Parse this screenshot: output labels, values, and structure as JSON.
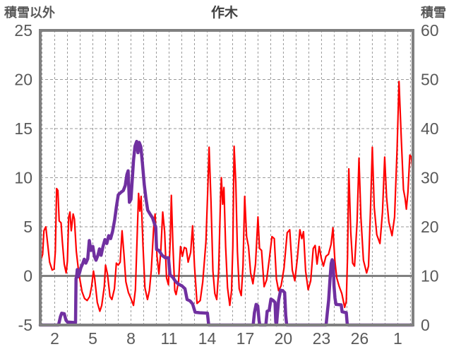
{
  "title": "作木",
  "left_axis": {
    "label": "積雪以外",
    "max": 25,
    "min": -5,
    "ticks": [
      25,
      20,
      15,
      10,
      5,
      0,
      -5
    ]
  },
  "right_axis": {
    "label": "積雪",
    "max": 60,
    "min": 0,
    "ticks": [
      60,
      50,
      40,
      30,
      20,
      10,
      0
    ]
  },
  "x_axis": {
    "tick_labels": [
      "2",
      "5",
      "8",
      "11",
      "14",
      "17",
      "20",
      "23",
      "26",
      "1"
    ],
    "tick_days": [
      2,
      5,
      8,
      11,
      14,
      17,
      20,
      23,
      26,
      29
    ],
    "day_start": 0.86,
    "day_end": 30.2,
    "grid_step_days": 1
  },
  "colors": {
    "temperature": "#FF0000",
    "snow": "#7030A0",
    "frame": "#808080",
    "zero_line": "#808080",
    "grid": "#9a9a9a",
    "text": "#595959",
    "background": "#FFFFFF"
  },
  "chart_data": {
    "type": "line",
    "title": "作木",
    "xlabel": "",
    "ylabel_left": "積雪以外",
    "ylabel_right": "積雪",
    "ylim_left": [
      -5,
      25
    ],
    "ylim_right": [
      0,
      60
    ],
    "grid": true,
    "legend": "none",
    "series": [
      {
        "name": "積雪以外",
        "axis": "left",
        "color": "#FF0000",
        "width": 2.2,
        "points": [
          [
            0.86,
            1.5
          ],
          [
            0.95,
            1.8
          ],
          [
            1.05,
            2.2
          ],
          [
            1.15,
            4.6
          ],
          [
            1.3,
            5.0
          ],
          [
            1.45,
            3.2
          ],
          [
            1.6,
            1.4
          ],
          [
            1.8,
            0.6
          ],
          [
            1.95,
            0.7
          ],
          [
            2.05,
            2.5
          ],
          [
            2.15,
            8.9
          ],
          [
            2.25,
            8.7
          ],
          [
            2.35,
            5.6
          ],
          [
            2.5,
            5.4
          ],
          [
            2.6,
            3.5
          ],
          [
            2.75,
            1.2
          ],
          [
            2.9,
            0.3
          ],
          [
            3.0,
            1.5
          ],
          [
            3.1,
            6.0
          ],
          [
            3.2,
            6.5
          ],
          [
            3.3,
            4.6
          ],
          [
            3.45,
            6.3
          ],
          [
            3.55,
            5.8
          ],
          [
            3.7,
            2.5
          ],
          [
            3.85,
            0.8
          ],
          [
            4.0,
            -0.5
          ],
          [
            4.15,
            -1.6
          ],
          [
            4.35,
            -2.3
          ],
          [
            4.55,
            -2.5
          ],
          [
            4.75,
            -2.1
          ],
          [
            4.9,
            -1.1
          ],
          [
            5.05,
            0.5
          ],
          [
            5.15,
            -0.3
          ],
          [
            5.35,
            -2.7
          ],
          [
            5.55,
            -3.6
          ],
          [
            5.7,
            -3.0
          ],
          [
            5.9,
            -1.1
          ],
          [
            6.0,
            1.1
          ],
          [
            6.15,
            0.2
          ],
          [
            6.35,
            -2.1
          ],
          [
            6.5,
            -2.4
          ],
          [
            6.7,
            -1.3
          ],
          [
            6.85,
            1.3
          ],
          [
            7.0,
            1.1
          ],
          [
            7.15,
            1.4
          ],
          [
            7.3,
            4.6
          ],
          [
            7.45,
            2.2
          ],
          [
            7.6,
            -0.6
          ],
          [
            7.8,
            -1.7
          ],
          [
            8.0,
            -2.3
          ],
          [
            8.2,
            -3.0
          ],
          [
            8.35,
            -1.4
          ],
          [
            8.5,
            4.5
          ],
          [
            8.6,
            8.4
          ],
          [
            8.7,
            6.6
          ],
          [
            8.8,
            8.1
          ],
          [
            8.95,
            3.0
          ],
          [
            9.1,
            -1.2
          ],
          [
            9.3,
            -2.4
          ],
          [
            9.45,
            -1.5
          ],
          [
            9.6,
            0.6
          ],
          [
            9.8,
            5.2
          ],
          [
            9.9,
            6.3
          ],
          [
            10.05,
            2.0
          ],
          [
            10.2,
            0.2
          ],
          [
            10.35,
            2.6
          ],
          [
            10.5,
            6.5
          ],
          [
            10.65,
            4.5
          ],
          [
            10.8,
            -0.2
          ],
          [
            10.95,
            -0.9
          ],
          [
            11.1,
            4.0
          ],
          [
            11.18,
            8.2
          ],
          [
            11.3,
            3.2
          ],
          [
            11.45,
            -1.5
          ],
          [
            11.55,
            -1.9
          ],
          [
            11.75,
            -0.5
          ],
          [
            11.9,
            3.0
          ],
          [
            12.05,
            2.0
          ],
          [
            12.2,
            2.9
          ],
          [
            12.35,
            2.8
          ],
          [
            12.5,
            1.4
          ],
          [
            12.7,
            2.4
          ],
          [
            12.85,
            5.1
          ],
          [
            13.0,
            1.0
          ],
          [
            13.2,
            -2.8
          ],
          [
            13.45,
            -2.5
          ],
          [
            13.65,
            -0.6
          ],
          [
            13.9,
            3.5
          ],
          [
            14.05,
            9.0
          ],
          [
            14.15,
            13.1
          ],
          [
            14.3,
            7.5
          ],
          [
            14.45,
            0.5
          ],
          [
            14.6,
            -1.8
          ],
          [
            14.75,
            -2.4
          ],
          [
            14.9,
            0.5
          ],
          [
            15.05,
            8.0
          ],
          [
            15.12,
            10.0
          ],
          [
            15.22,
            7.3
          ],
          [
            15.32,
            9.0
          ],
          [
            15.45,
            3.0
          ],
          [
            15.6,
            -1.2
          ],
          [
            15.78,
            -3.0
          ],
          [
            15.92,
            -1.5
          ],
          [
            16.02,
            3.0
          ],
          [
            16.12,
            13.2
          ],
          [
            16.25,
            9.5
          ],
          [
            16.38,
            2.5
          ],
          [
            16.52,
            -1.3
          ],
          [
            16.68,
            -2.0
          ],
          [
            16.82,
            1.0
          ],
          [
            16.95,
            8.1
          ],
          [
            17.1,
            4.0
          ],
          [
            17.25,
            3.0
          ],
          [
            17.42,
            0.3
          ],
          [
            17.6,
            -0.8
          ],
          [
            17.8,
            1.2
          ],
          [
            18.0,
            6.0
          ],
          [
            18.12,
            2.8
          ],
          [
            18.28,
            2.6
          ],
          [
            18.48,
            -1.1
          ],
          [
            18.68,
            -0.4
          ],
          [
            18.9,
            1.8
          ],
          [
            19.1,
            4.0
          ],
          [
            19.28,
            3.8
          ],
          [
            19.45,
            -0.3
          ],
          [
            19.62,
            -1.5
          ],
          [
            19.82,
            -1.0
          ],
          [
            20.05,
            0.8
          ],
          [
            20.3,
            4.4
          ],
          [
            20.5,
            4.7
          ],
          [
            20.7,
            0.6
          ],
          [
            20.9,
            -0.5
          ],
          [
            21.1,
            1.8
          ],
          [
            21.3,
            4.7
          ],
          [
            21.45,
            3.8
          ],
          [
            21.58,
            4.5
          ],
          [
            21.75,
            0.5
          ],
          [
            21.95,
            -1.4
          ],
          [
            22.15,
            -0.5
          ],
          [
            22.35,
            2.8
          ],
          [
            22.5,
            3.1
          ],
          [
            22.65,
            1.2
          ],
          [
            22.82,
            3.0
          ],
          [
            22.98,
            1.8
          ],
          [
            23.15,
            1.0
          ],
          [
            23.35,
            2.0
          ],
          [
            23.55,
            2.2
          ],
          [
            23.75,
            3.2
          ],
          [
            23.9,
            4.9
          ],
          [
            24.05,
            1.6
          ],
          [
            24.2,
            -0.2
          ],
          [
            24.4,
            -1.1
          ],
          [
            24.6,
            -1.8
          ],
          [
            24.82,
            -3.2
          ],
          [
            24.95,
            -2.6
          ],
          [
            25.05,
            2.0
          ],
          [
            25.15,
            10.9
          ],
          [
            25.3,
            4.5
          ],
          [
            25.45,
            1.3
          ],
          [
            25.6,
            1.0
          ],
          [
            25.8,
            5.5
          ],
          [
            25.95,
            12.0
          ],
          [
            26.1,
            6.0
          ],
          [
            26.3,
            1.6
          ],
          [
            26.55,
            0.3
          ],
          [
            26.7,
            1.0
          ],
          [
            26.85,
            6.5
          ],
          [
            27.0,
            13.1
          ],
          [
            27.15,
            7.0
          ],
          [
            27.35,
            4.2
          ],
          [
            27.6,
            3.3
          ],
          [
            27.8,
            6.5
          ],
          [
            27.97,
            12.1
          ],
          [
            28.12,
            8.0
          ],
          [
            28.3,
            5.5
          ],
          [
            28.55,
            4.1
          ],
          [
            28.75,
            6.0
          ],
          [
            28.95,
            13.0
          ],
          [
            29.1,
            19.8
          ],
          [
            29.28,
            14.0
          ],
          [
            29.45,
            8.8
          ],
          [
            29.58,
            7.9
          ],
          [
            29.68,
            6.8
          ],
          [
            29.8,
            8.5
          ],
          [
            29.95,
            12.3
          ],
          [
            30.08,
            12.1
          ],
          [
            30.19,
            10.4
          ]
        ]
      },
      {
        "name": "積雪",
        "axis": "right",
        "color": "#7030A0",
        "width": 4.5,
        "points": [
          [
            0.86,
            0
          ],
          [
            2.3,
            0
          ],
          [
            2.45,
            1.7
          ],
          [
            2.55,
            2.4
          ],
          [
            2.75,
            2.3
          ],
          [
            2.88,
            1.0
          ],
          [
            3.0,
            0.6
          ],
          [
            3.55,
            0.5
          ],
          [
            3.64,
            0.5
          ],
          [
            3.68,
            9.5
          ],
          [
            3.72,
            9.8
          ],
          [
            3.78,
            11.3
          ],
          [
            3.84,
            9.8
          ],
          [
            3.95,
            10.6
          ],
          [
            4.05,
            11.6
          ],
          [
            4.2,
            12.5
          ],
          [
            4.32,
            13.4
          ],
          [
            4.45,
            12.6
          ],
          [
            4.6,
            13.5
          ],
          [
            4.72,
            17.2
          ],
          [
            4.85,
            15.2
          ],
          [
            5.0,
            16.0
          ],
          [
            5.12,
            14.0
          ],
          [
            5.25,
            13.2
          ],
          [
            5.4,
            14.2
          ],
          [
            5.52,
            15.5
          ],
          [
            5.65,
            14.2
          ],
          [
            5.8,
            16.0
          ],
          [
            5.95,
            17.4
          ],
          [
            6.1,
            16.6
          ],
          [
            6.25,
            18.2
          ],
          [
            6.4,
            17.6
          ],
          [
            6.55,
            19.0
          ],
          [
            6.72,
            21.5
          ],
          [
            6.85,
            24.0
          ],
          [
            7.0,
            26.5
          ],
          [
            7.2,
            27.0
          ],
          [
            7.4,
            27.4
          ],
          [
            7.55,
            28.4
          ],
          [
            7.68,
            30.6
          ],
          [
            7.78,
            31.4
          ],
          [
            7.88,
            25.0
          ],
          [
            8.0,
            25.6
          ],
          [
            8.1,
            29.5
          ],
          [
            8.2,
            33.5
          ],
          [
            8.32,
            36.4
          ],
          [
            8.45,
            37.4
          ],
          [
            8.55,
            35.1
          ],
          [
            8.65,
            37.2
          ],
          [
            8.78,
            36.3
          ],
          [
            8.9,
            33.0
          ],
          [
            9.05,
            28.5
          ],
          [
            9.18,
            25.8
          ],
          [
            9.32,
            23.4
          ],
          [
            9.5,
            22.6
          ],
          [
            9.7,
            21.8
          ],
          [
            9.88,
            20.4
          ],
          [
            9.95,
            20.0
          ],
          [
            10.02,
            15.4
          ],
          [
            10.2,
            15.2
          ],
          [
            10.45,
            14.2
          ],
          [
            10.7,
            13.7
          ],
          [
            10.95,
            13.7
          ],
          [
            11.08,
            10.2
          ],
          [
            11.3,
            9.7
          ],
          [
            11.5,
            8.9
          ],
          [
            11.75,
            8.3
          ],
          [
            12.0,
            8.0
          ],
          [
            12.25,
            7.4
          ],
          [
            12.42,
            5.2
          ],
          [
            12.65,
            4.9
          ],
          [
            12.85,
            4.3
          ],
          [
            13.05,
            2.6
          ],
          [
            13.4,
            2.5
          ],
          [
            14.02,
            2.4
          ],
          [
            14.12,
            0
          ],
          [
            17.62,
            0
          ],
          [
            17.72,
            2.5
          ],
          [
            17.85,
            4.2
          ],
          [
            17.98,
            3.9
          ],
          [
            18.08,
            1.0
          ],
          [
            18.14,
            0
          ],
          [
            18.62,
            0
          ],
          [
            18.72,
            2.8
          ],
          [
            18.88,
            3.0
          ],
          [
            19.02,
            5.3
          ],
          [
            19.2,
            5.0
          ],
          [
            19.34,
            4.6
          ],
          [
            19.4,
            0.6
          ],
          [
            19.46,
            0
          ],
          [
            19.52,
            2.0
          ],
          [
            19.62,
            5.0
          ],
          [
            19.78,
            7.1
          ],
          [
            19.95,
            7.0
          ],
          [
            20.1,
            6.6
          ],
          [
            20.18,
            2.0
          ],
          [
            20.26,
            0
          ],
          [
            23.36,
            0
          ],
          [
            23.46,
            2.6
          ],
          [
            23.56,
            5.0
          ],
          [
            23.66,
            9.0
          ],
          [
            23.76,
            12.5
          ],
          [
            23.84,
            13.3
          ],
          [
            23.92,
            12.8
          ],
          [
            23.98,
            8.0
          ],
          [
            24.06,
            5.5
          ],
          [
            24.14,
            4.2
          ],
          [
            24.55,
            4.1
          ],
          [
            24.62,
            2.7
          ],
          [
            24.95,
            2.5
          ],
          [
            25.02,
            0.3
          ],
          [
            25.08,
            0
          ],
          [
            30.19,
            0
          ]
        ]
      }
    ]
  }
}
